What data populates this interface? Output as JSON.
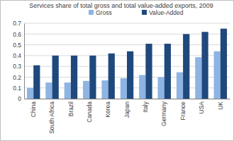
{
  "chart_data": {
    "type": "bar",
    "title": "Services share of total gross and total value-added exports, 2009",
    "categories": [
      "China",
      "South Africa",
      "Brazil",
      "Canada",
      "Korea",
      "Japan",
      "Italy",
      "Germany",
      "France",
      "USA",
      "UK"
    ],
    "series": [
      {
        "name": "Gross",
        "color": "#8eb4e3",
        "values": [
          0.1,
          0.15,
          0.15,
          0.165,
          0.17,
          0.19,
          0.22,
          0.2,
          0.245,
          0.385,
          0.44
        ]
      },
      {
        "name": "Value-Added",
        "color": "#1f497d",
        "values": [
          0.31,
          0.4,
          0.4,
          0.4,
          0.42,
          0.44,
          0.51,
          0.51,
          0.6,
          0.62,
          0.65
        ]
      }
    ],
    "ylim": [
      0,
      0.7
    ],
    "yticks": [
      0,
      0.1,
      0.2,
      0.3,
      0.4,
      0.5,
      0.6,
      0.7
    ],
    "grid": true,
    "legend": "top"
  }
}
